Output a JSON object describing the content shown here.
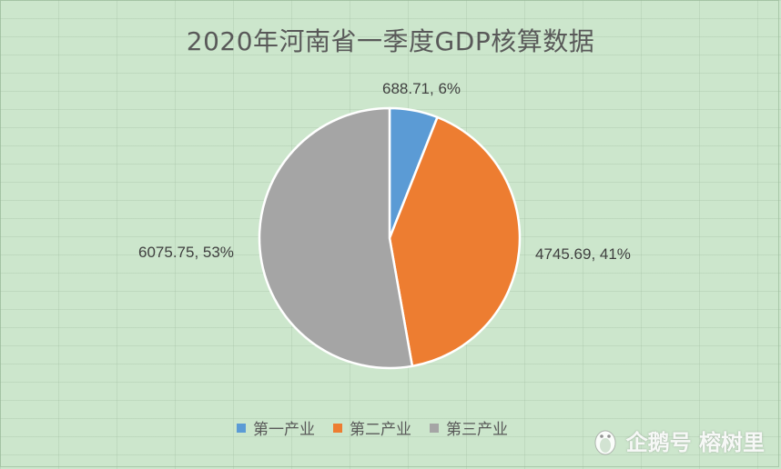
{
  "chart_data": {
    "type": "pie",
    "title": "2020年河南省一季度GDP核算数据",
    "categories": [
      "第一产业",
      "第二产业",
      "第三产业"
    ],
    "values": [
      688.71,
      4745.69,
      6075.75
    ],
    "percentages": [
      "6%",
      "41%",
      "53%"
    ],
    "data_labels": [
      "688.71, 6%",
      "4745.69, 41%",
      "6075.75, 53%"
    ],
    "colors": [
      "#5b9bd5",
      "#ed7d31",
      "#a5a5a5"
    ],
    "legend_position": "bottom"
  },
  "watermark": {
    "icon": "penguin-icon",
    "text": "企鹅号 榕树里"
  }
}
